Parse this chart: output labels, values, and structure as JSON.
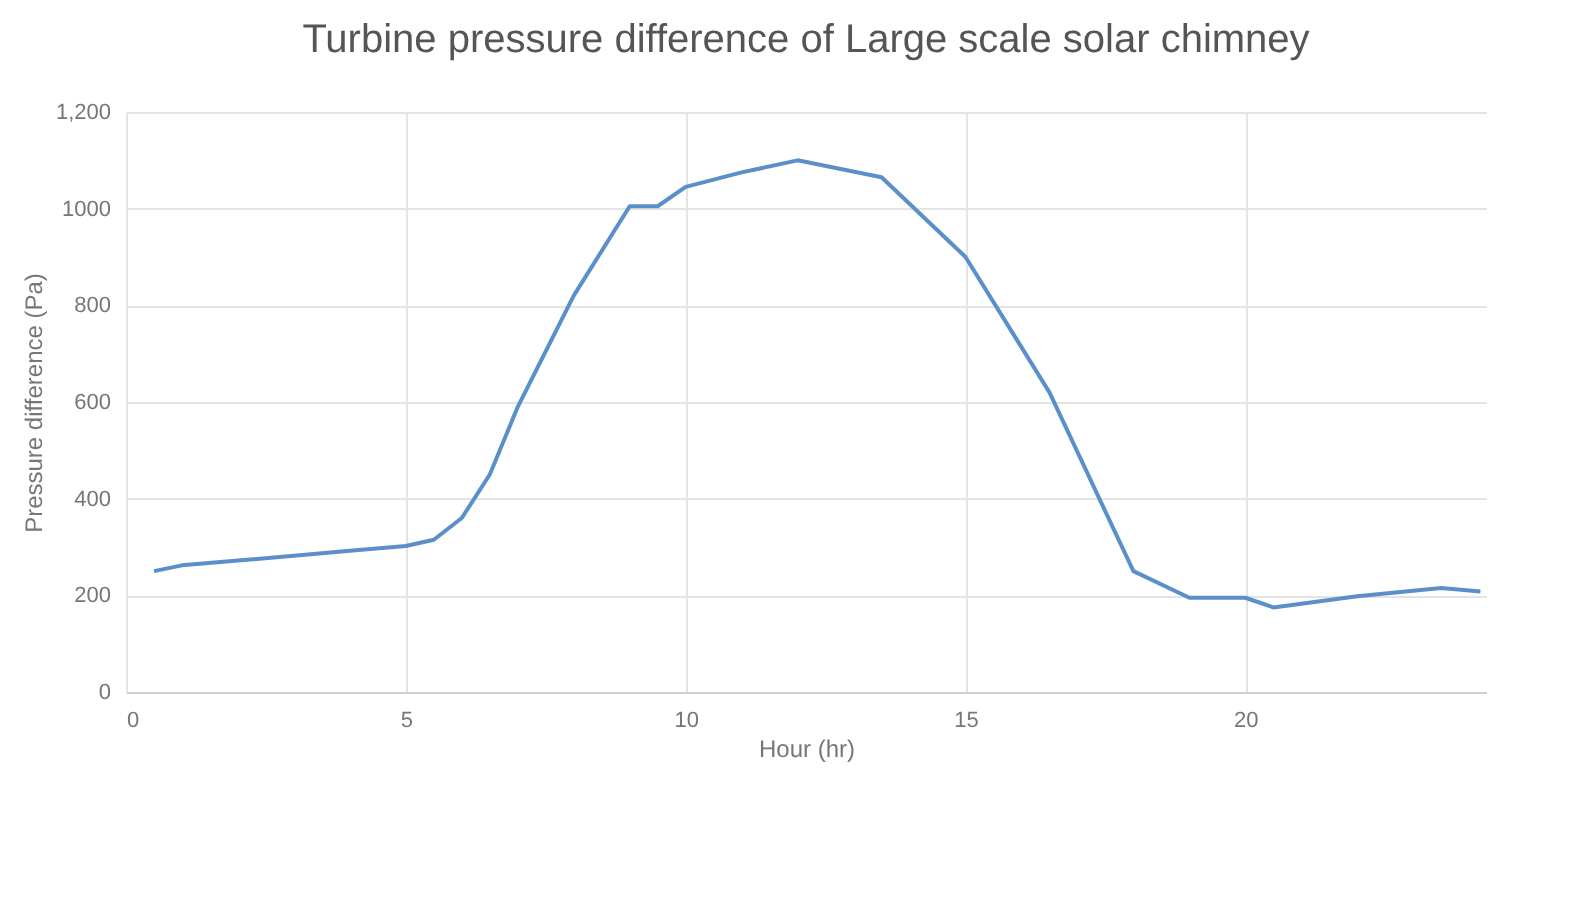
{
  "chart_data": {
    "type": "line",
    "title": "Turbine pressure difference of Large scale solar chimney",
    "xlabel": "Hour (hr)",
    "ylabel": "Pressure difference (Pa)",
    "x": [
      0.5,
      1,
      2,
      3,
      4,
      5,
      5.5,
      6,
      6.5,
      7,
      8,
      9,
      9.5,
      10,
      11,
      12,
      13.5,
      15,
      16.5,
      18,
      19,
      20,
      20.5,
      22,
      23.5,
      24.2
    ],
    "series": [
      {
        "color": "#5b8fc9",
        "values": [
          250,
          262,
          272,
          282,
          292,
          302,
          315,
          360,
          450,
          590,
          820,
          1005,
          1005,
          1045,
          1075,
          1100,
          1065,
          900,
          620,
          250,
          195,
          195,
          175,
          198,
          215,
          208
        ]
      }
    ],
    "xlim": [
      0,
      24.3
    ],
    "xticks": [
      0,
      5,
      10,
      15,
      20
    ],
    "ylim": [
      0,
      1200
    ],
    "yticks": [
      0,
      200,
      400,
      600,
      800,
      1000,
      {
        "value": 1200,
        "label": "1,200"
      }
    ],
    "grid": true,
    "legend": false
  }
}
